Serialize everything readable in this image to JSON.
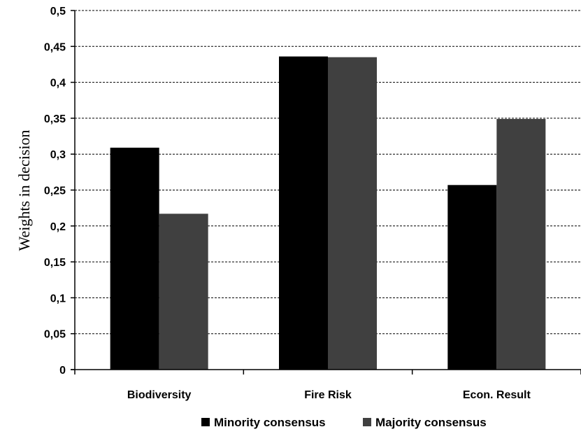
{
  "chart_data": {
    "type": "bar",
    "title": "",
    "xlabel": "",
    "ylabel": "Weights in decision",
    "ylim": [
      0,
      0.5
    ],
    "yticks": [
      0,
      0.05,
      0.1,
      0.15,
      0.2,
      0.25,
      0.3,
      0.35,
      0.4,
      0.45,
      0.5
    ],
    "ytick_labels": [
      "0",
      "0,05",
      "0,1",
      "0,15",
      "0,2",
      "0,25",
      "0,3",
      "0,35",
      "0,4",
      "0,45",
      "0,5"
    ],
    "categories": [
      "Biodiversity",
      "Fire Risk",
      "Econ. Result"
    ],
    "series": [
      {
        "name": "Minority consensus",
        "color": "#000000",
        "values": [
          0.309,
          0.436,
          0.257
        ]
      },
      {
        "name": "Majority consensus",
        "color": "#404040",
        "values": [
          0.217,
          0.435,
          0.349
        ]
      }
    ],
    "grid": "horizontal dashed",
    "legend_position": "bottom"
  }
}
